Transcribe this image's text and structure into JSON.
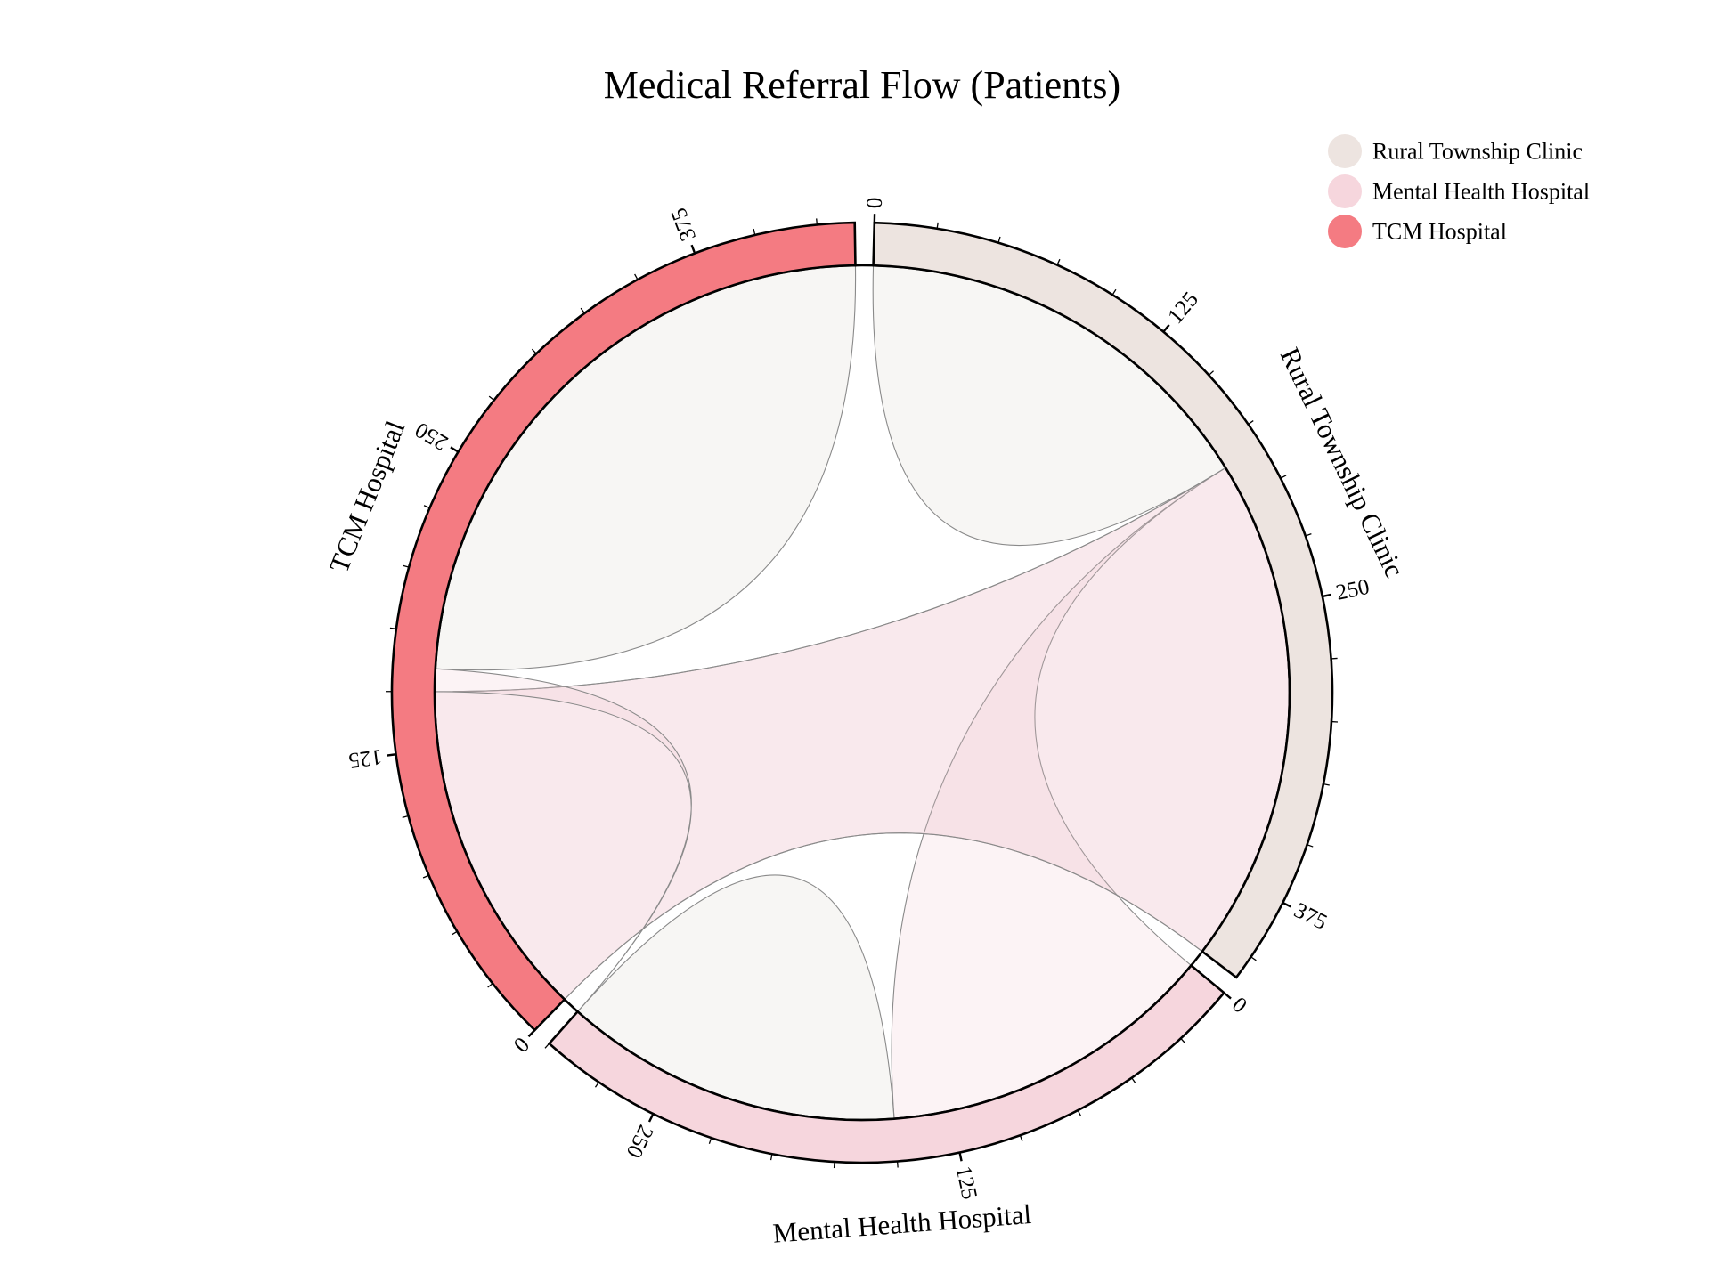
{
  "chart_data": {
    "type": "chord",
    "title": "Medical Referral Flow (Patients)",
    "groups": [
      {
        "name": "Rural Township Clinic",
        "color": "#ede4e0"
      },
      {
        "name": "Mental Health Hospital",
        "color": "#f6d6dd"
      },
      {
        "name": "TCM Hospital",
        "color": "#f47b82"
      }
    ],
    "matrix": [
      [
        185,
        0,
        225
      ],
      [
        150,
        150,
        0
      ],
      [
        150,
        10,
        280
      ]
    ],
    "tick_step": 25,
    "tick_label_step": 125,
    "legend_position": "top-right"
  }
}
